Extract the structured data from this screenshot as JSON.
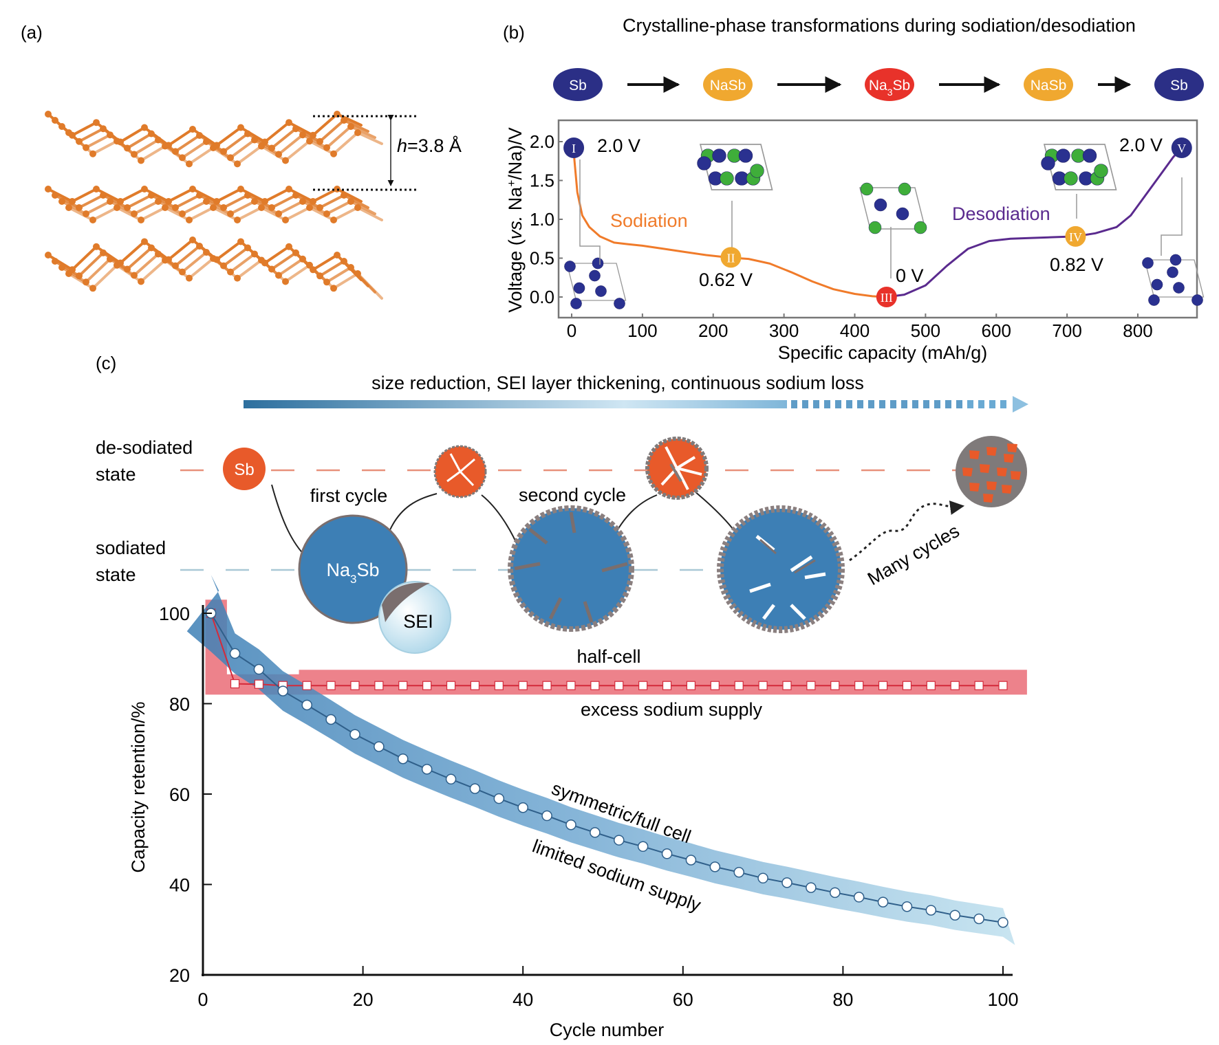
{
  "panels": {
    "a": {
      "label": "(a)",
      "layer_spacing_label_italic": "h",
      "layer_spacing_label_value": "=3.8 Å",
      "structure_color": "#e07b2a"
    },
    "b": {
      "label": "(b)",
      "title": "Crystalline-phase transformations during sodiation/desodiation",
      "phase_sequence": [
        {
          "name": "Sb",
          "main": "Sb",
          "sub": "",
          "tail": "",
          "color": "#2b2f86"
        },
        {
          "name": "NaSb",
          "main": "NaSb",
          "sub": "",
          "tail": "",
          "color": "#f0a830"
        },
        {
          "name": "Na3Sb",
          "main": "Na",
          "sub": "3",
          "tail": "Sb",
          "color": "#e8322a"
        },
        {
          "name": "NaSb",
          "main": "NaSb",
          "sub": "",
          "tail": "",
          "color": "#f0a830"
        },
        {
          "name": "Sb",
          "main": "Sb",
          "sub": "",
          "tail": "",
          "color": "#2b2f86"
        }
      ],
      "sodiation_label": "Sodiation",
      "desodiation_label": "Desodiation",
      "sodiation_color": "#f07b2a",
      "desodiation_color": "#5a2a8e",
      "markers": [
        {
          "id": "I",
          "capacity": 3,
          "voltage": 1.92,
          "color": "#2b2f86",
          "annotation": "2.0 V"
        },
        {
          "id": "II",
          "capacity": 225,
          "voltage": 0.51,
          "color": "#f0a830",
          "annotation": "0.62 V"
        },
        {
          "id": "III",
          "capacity": 445,
          "voltage": 0.0,
          "color": "#e8322a",
          "annotation": "0 V"
        },
        {
          "id": "IV",
          "capacity": 712,
          "voltage": 0.78,
          "color": "#f0a830",
          "annotation": "0.82 V"
        },
        {
          "id": "V",
          "capacity": 862,
          "voltage": 1.92,
          "color": "#2b2f86",
          "annotation": "2.0 V"
        }
      ]
    },
    "c": {
      "label": "(c)",
      "trend_text": "size reduction, SEI layer thickening, continuous sodium loss",
      "desodiated_state_line1": "de-sodiated",
      "desodiated_state_line2": "state",
      "sodiated_state_line1": "sodiated",
      "sodiated_state_line2": "state",
      "first_cycle": "first cycle",
      "second_cycle": "second cycle",
      "many_cycles": "Many cycles",
      "sb_particle": "Sb",
      "na3sb_main": "Na",
      "na3sb_sub": "3",
      "na3sb_tail": "Sb",
      "sei_label": "SEI",
      "half_cell_label": "half-cell",
      "excess_label": "excess sodium supply",
      "full_cell_label": "symmetric/full cell",
      "limited_label": "limited sodium supply"
    }
  },
  "chart_data": [
    {
      "type": "line",
      "panel": "b",
      "title": "Crystalline-phase transformations during sodiation/desodiation",
      "xlabel": "Specific capacity (mAh/g)",
      "ylabel": "Voltage (vs. Na+/Na)/V",
      "ylabel_parts": {
        "pre": "Voltage (",
        "italic": "vs.",
        "mid": " Na",
        "sup": "+",
        "post": "/Na)/V"
      },
      "xlim": [
        -20,
        885
      ],
      "ylim": [
        -0.3,
        2.25
      ],
      "xticks": [
        0,
        100,
        200,
        300,
        400,
        500,
        600,
        700,
        800
      ],
      "yticks": [
        0.0,
        0.5,
        1.0,
        1.5,
        2.0
      ],
      "xtick_labels": [
        "0",
        "100",
        "200",
        "300",
        "400",
        "500",
        "600",
        "700",
        "800"
      ],
      "ytick_labels": [
        "0.0",
        "0.5",
        "1.0",
        "1.5",
        "2.0"
      ],
      "series": [
        {
          "name": "Sodiation",
          "color": "#f07b2a",
          "x": [
            3,
            8,
            15,
            25,
            40,
            60,
            80,
            100,
            130,
            160,
            190,
            220,
            250,
            280,
            310,
            340,
            370,
            400,
            425,
            445
          ],
          "y": [
            1.85,
            1.35,
            1.05,
            0.9,
            0.78,
            0.7,
            0.68,
            0.66,
            0.62,
            0.58,
            0.54,
            0.51,
            0.49,
            0.43,
            0.32,
            0.2,
            0.1,
            0.04,
            0.01,
            0.0
          ]
        },
        {
          "name": "Desodiation",
          "color": "#5a2a8e",
          "x": [
            445,
            470,
            500,
            530,
            560,
            590,
            620,
            650,
            680,
            712,
            740,
            770,
            790,
            810,
            830,
            850,
            862
          ],
          "y": [
            0.0,
            0.03,
            0.15,
            0.4,
            0.62,
            0.72,
            0.75,
            0.76,
            0.77,
            0.78,
            0.82,
            0.9,
            1.05,
            1.3,
            1.55,
            1.8,
            1.92
          ]
        }
      ]
    },
    {
      "type": "line",
      "panel": "c",
      "xlabel": "Cycle number",
      "ylabel": "Capacity retention/%",
      "xlim": [
        0,
        100
      ],
      "ylim": [
        20,
        100
      ],
      "xticks": [
        0,
        20,
        40,
        60,
        80,
        100
      ],
      "yticks": [
        20,
        40,
        60,
        80,
        100
      ],
      "xtick_labels": [
        "0",
        "20",
        "40",
        "60",
        "80",
        "100"
      ],
      "ytick_labels": [
        "20",
        "40",
        "60",
        "80",
        "100"
      ],
      "grid": false,
      "series": [
        {
          "name": "half-cell (excess sodium supply)",
          "marker": "square",
          "color": "#d42a3a",
          "band_color": "#e8636e",
          "x": [
            1,
            4,
            7,
            10,
            13,
            16,
            19,
            22,
            25,
            28,
            31,
            34,
            37,
            40,
            43,
            46,
            49,
            52,
            55,
            58,
            61,
            64,
            67,
            70,
            73,
            76,
            79,
            82,
            85,
            88,
            91,
            94,
            97,
            100
          ],
          "y": [
            100,
            84.4,
            84.3,
            84.0,
            84.0,
            84.0,
            84.0,
            84.0,
            84.0,
            84.0,
            84.0,
            84.0,
            84.0,
            84.0,
            84.0,
            84.0,
            84.0,
            84.0,
            84.0,
            84.0,
            84.0,
            84.0,
            84.0,
            84.0,
            84.0,
            84.0,
            84.0,
            84.0,
            84.0,
            84.0,
            84.0,
            84.0,
            84.0,
            84.0
          ]
        },
        {
          "name": "symmetric/full cell (limited sodium supply)",
          "marker": "circle",
          "color": "#2f5f8a",
          "band_color": "#4a8cc0",
          "x": [
            1,
            4,
            7,
            10,
            13,
            16,
            19,
            22,
            25,
            28,
            31,
            34,
            37,
            40,
            43,
            46,
            49,
            52,
            55,
            58,
            61,
            64,
            67,
            70,
            73,
            76,
            79,
            82,
            85,
            88,
            91,
            94,
            97,
            100
          ],
          "y": [
            100,
            91.1,
            87.6,
            82.8,
            79.7,
            76.5,
            73.2,
            70.5,
            67.8,
            65.5,
            63.3,
            61.2,
            59.0,
            57.0,
            55.2,
            53.2,
            51.5,
            49.8,
            48.4,
            46.8,
            45.4,
            43.9,
            42.7,
            41.4,
            40.4,
            39.3,
            38.2,
            37.2,
            36.1,
            35.1,
            34.3,
            33.2,
            32.4,
            31.6
          ]
        }
      ]
    }
  ]
}
